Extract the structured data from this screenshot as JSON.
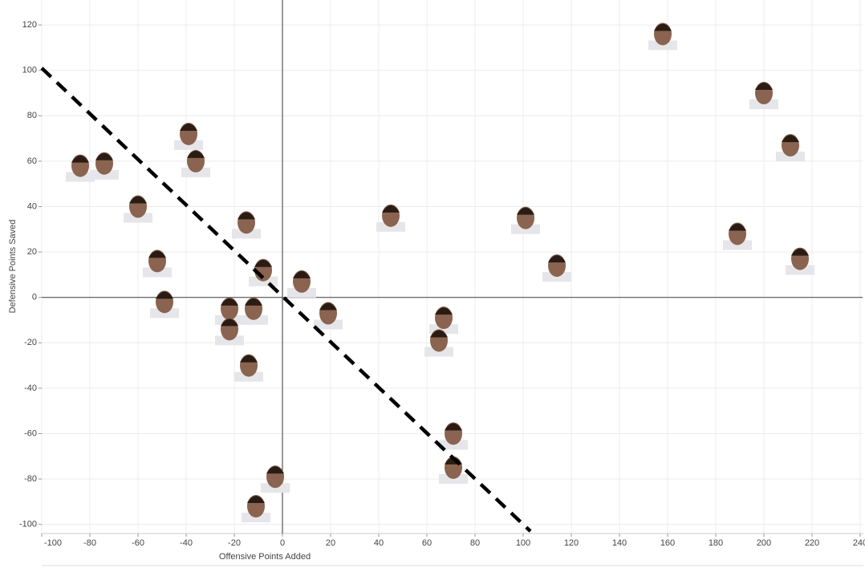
{
  "chart_data": {
    "type": "scatter",
    "x_label": "Offensive Points Added",
    "y_label": "Defensive Points Saved",
    "x": [
      158,
      200,
      211,
      189,
      215,
      114,
      101,
      45,
      -84,
      -74,
      -39,
      -36,
      -60,
      -15,
      -52,
      -49,
      -8,
      8,
      19,
      -22,
      -12,
      -22,
      -14,
      67,
      65,
      71,
      71,
      -3,
      -11
    ],
    "values": [
      116,
      90,
      67,
      28,
      17,
      14,
      35,
      36,
      58,
      59,
      72,
      60,
      40,
      33,
      16,
      -2,
      12,
      7,
      -7,
      -5,
      -5,
      -14,
      -30,
      -9,
      -19,
      -60,
      -75,
      -79,
      -92
    ],
    "color": "#8a6450",
    "trend_line": {
      "x": [
        -100,
        103
      ],
      "y": [
        101,
        -103
      ],
      "color": "#000000"
    },
    "xlim": [
      -100,
      241
    ],
    "ylim": [
      -104,
      131
    ],
    "xticks": [
      -100,
      -80,
      -60,
      -40,
      -20,
      0,
      20,
      40,
      60,
      80,
      100,
      120,
      140,
      160,
      180,
      200,
      220,
      240
    ],
    "yticks": [
      -100,
      -80,
      -60,
      -40,
      -20,
      0,
      20,
      40,
      60,
      80,
      100,
      120
    ],
    "grid": true
  }
}
